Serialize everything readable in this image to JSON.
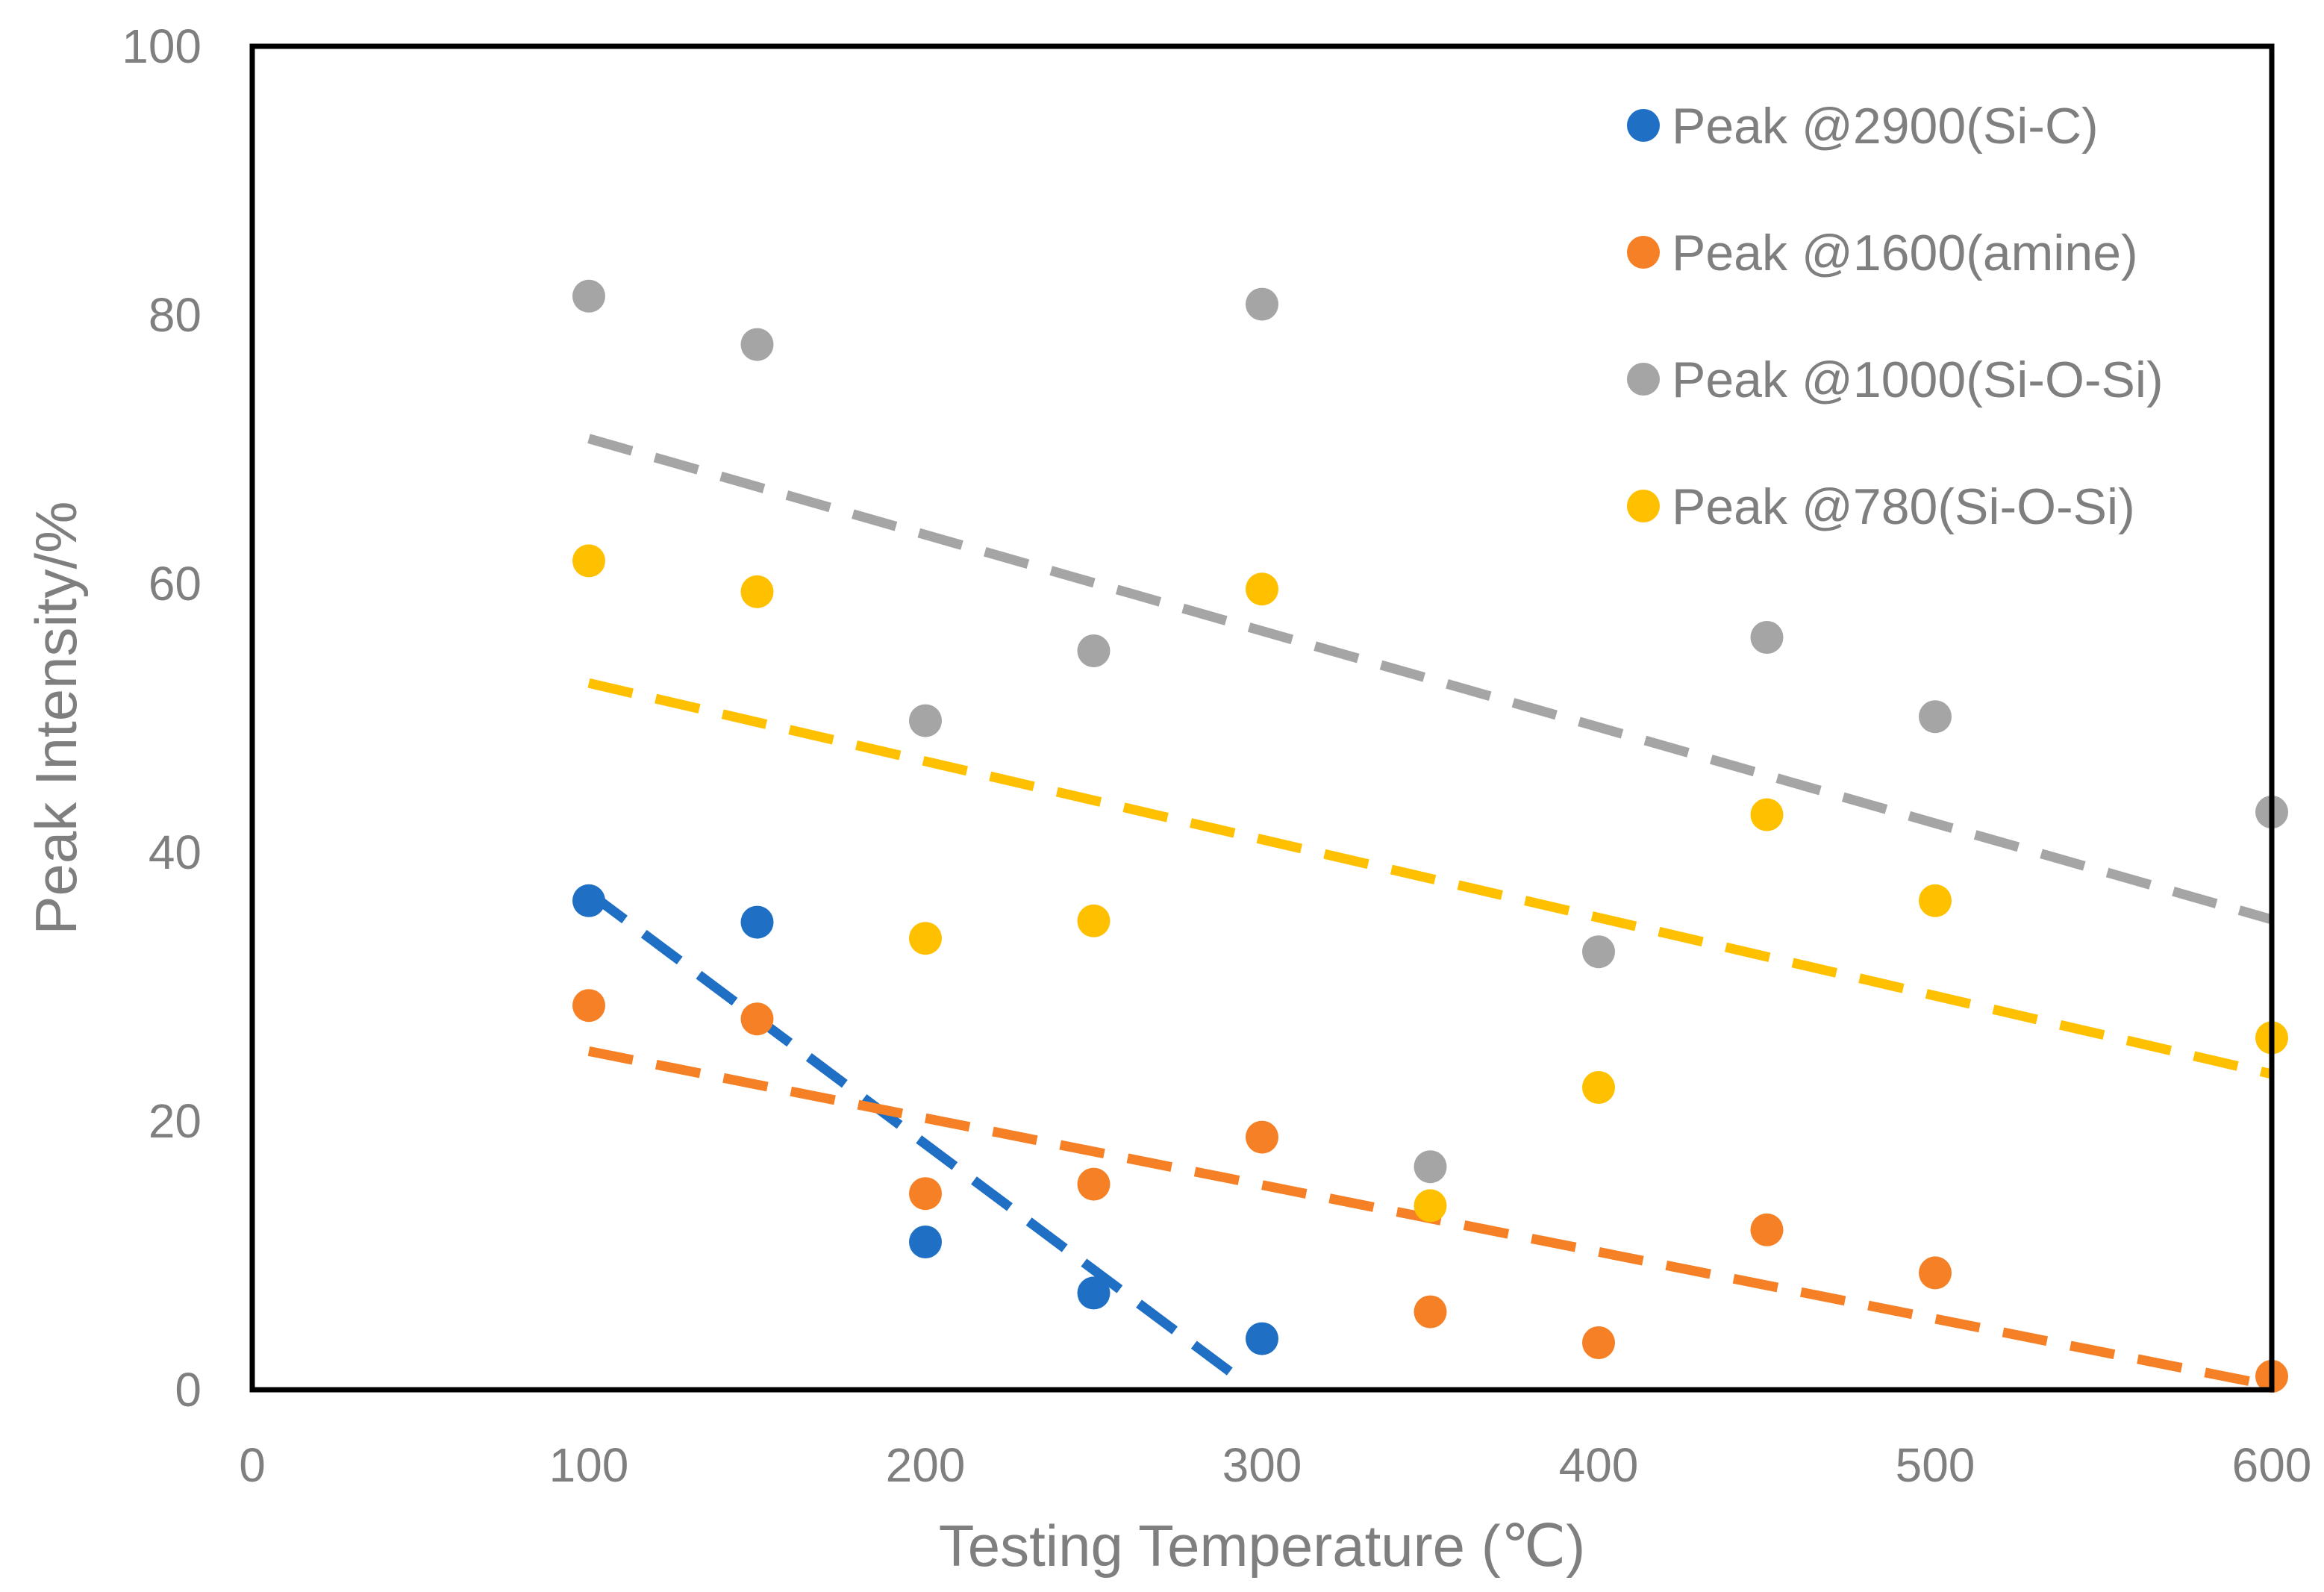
{
  "chart_data": {
    "type": "scatter",
    "title": "",
    "xlabel": "Testing Temperature (℃)",
    "ylabel": "Peak Intensity/%",
    "xlim": [
      0,
      600
    ],
    "ylim": [
      0,
      100
    ],
    "xticks": [
      0,
      100,
      200,
      300,
      400,
      500,
      600
    ],
    "yticks": [
      0,
      20,
      40,
      60,
      80,
      100
    ],
    "grid": false,
    "legend_position": "top-right",
    "series": [
      {
        "name": "Peak @2900(Si-C)",
        "color": "#1f6fc5",
        "x": [
          100,
          150,
          200,
          250,
          300
        ],
        "y": [
          36.4,
          34.8,
          11,
          7.2,
          3.8
        ],
        "trendline": {
          "x": [
            100,
            295
          ],
          "y": [
            37,
            0.5
          ]
        }
      },
      {
        "name": "Peak @1600(amine)",
        "color": "#f58025",
        "x": [
          100,
          150,
          200,
          250,
          300,
          350,
          400,
          450,
          500,
          600
        ],
        "y": [
          28.6,
          27.6,
          14.6,
          15.3,
          18.8,
          5.8,
          3.5,
          11.9,
          8.7,
          1
        ],
        "trendline": {
          "x": [
            100,
            600
          ],
          "y": [
            25.2,
            0.3
          ]
        }
      },
      {
        "name": "Peak @1000(Si-O-Si)",
        "color": "#a5a5a5",
        "x": [
          100,
          150,
          200,
          250,
          300,
          350,
          400,
          450,
          500,
          600
        ],
        "y": [
          81.4,
          77.8,
          49.8,
          55,
          80.8,
          16.6,
          32.6,
          56,
          50.1,
          43
        ],
        "trendline": {
          "x": [
            100,
            600
          ],
          "y": [
            70.8,
            35
          ]
        }
      },
      {
        "name": "Peak @780(Si-O-Si)",
        "color": "#ffc000",
        "x": [
          100,
          150,
          200,
          250,
          300,
          350,
          400,
          450,
          500,
          600
        ],
        "y": [
          61.7,
          59.4,
          33.6,
          34.9,
          59.6,
          13.7,
          22.5,
          42.8,
          36.4,
          26.2
        ],
        "trendline": {
          "x": [
            100,
            600
          ],
          "y": [
            52.6,
            23.5
          ]
        }
      }
    ]
  }
}
